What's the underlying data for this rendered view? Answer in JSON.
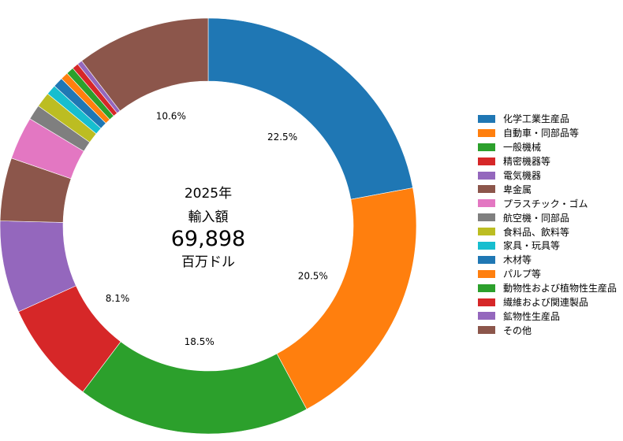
{
  "chart_data": {
    "type": "pie",
    "style": "donut",
    "center_text": {
      "year": "2025年",
      "label": "輸入額",
      "total": "69,898",
      "unit": "百万ドル"
    },
    "legend_position": "right",
    "slices": [
      {
        "label": "化学工業生産品",
        "value": 22.5,
        "color": "#1f77b4",
        "data_label": "22.5%"
      },
      {
        "label": "自動車・同部品等",
        "value": 20.5,
        "color": "#ff7f0e",
        "data_label": "20.5%"
      },
      {
        "label": "一般機械",
        "value": 18.5,
        "color": "#2ca02c",
        "data_label": "18.5%"
      },
      {
        "label": "精密機器等",
        "value": 8.1,
        "color": "#d62728",
        "data_label": "8.1%"
      },
      {
        "label": "電気機器",
        "value": 7.3,
        "color": "#9467bd",
        "data_label": ""
      },
      {
        "label": "卑金属",
        "value": 5.0,
        "color": "#8c564b",
        "data_label": ""
      },
      {
        "label": "プラスチック・ゴム",
        "value": 3.4,
        "color": "#e377c2",
        "data_label": ""
      },
      {
        "label": "航空機・同部品",
        "value": 1.2,
        "color": "#7f7f7f",
        "data_label": ""
      },
      {
        "label": "食料品、飲料等",
        "value": 1.2,
        "color": "#bcbd22",
        "data_label": ""
      },
      {
        "label": "家具・玩具等",
        "value": 0.8,
        "color": "#17becf",
        "data_label": ""
      },
      {
        "label": "木材等",
        "value": 0.8,
        "color": "#1f77b4",
        "data_label": ""
      },
      {
        "label": "パルプ等",
        "value": 0.6,
        "color": "#ff7f0e",
        "data_label": ""
      },
      {
        "label": "動物性および植物性生産品",
        "value": 0.6,
        "color": "#2ca02c",
        "data_label": ""
      },
      {
        "label": "繊維および関連製品",
        "value": 0.5,
        "color": "#d62728",
        "data_label": ""
      },
      {
        "label": "鉱物性生産品",
        "value": 0.4,
        "color": "#9467bd",
        "data_label": ""
      },
      {
        "label": "その他",
        "value": 10.6,
        "color": "#8c564b",
        "data_label": "10.6%"
      }
    ]
  }
}
